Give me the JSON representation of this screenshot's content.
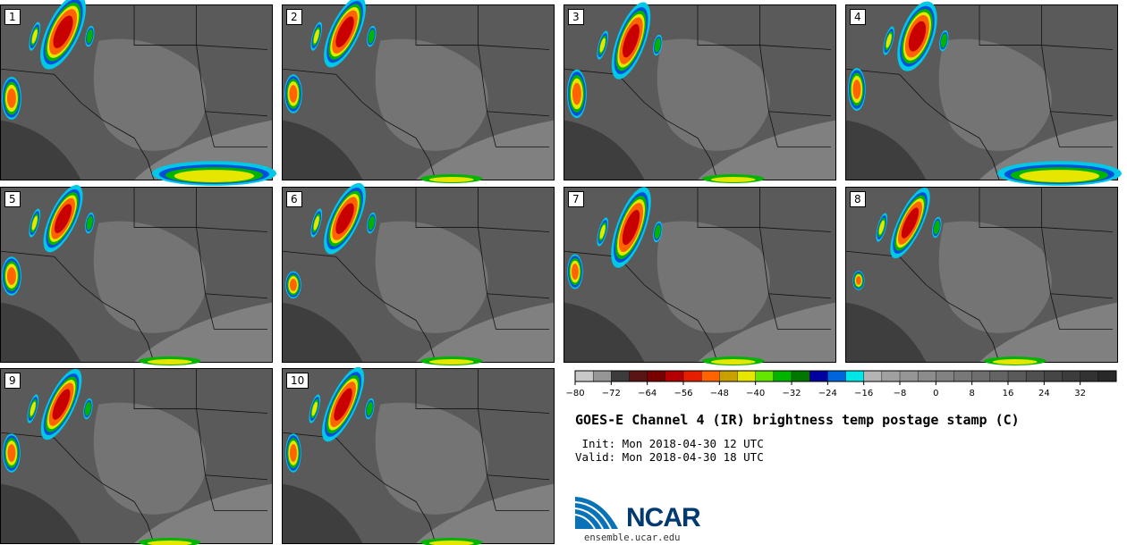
{
  "panels": [
    {
      "label": "1"
    },
    {
      "label": "2"
    },
    {
      "label": "3"
    },
    {
      "label": "4"
    },
    {
      "label": "5"
    },
    {
      "label": "6"
    },
    {
      "label": "7"
    },
    {
      "label": "8"
    },
    {
      "label": "9"
    },
    {
      "label": "10"
    }
  ],
  "colorbar": {
    "colors": [
      "#c8c8c8",
      "#969696",
      "#3c3c3c",
      "#5a1414",
      "#780000",
      "#b40000",
      "#e61e00",
      "#ff6400",
      "#c8a000",
      "#e6e600",
      "#64e600",
      "#00b400",
      "#007800",
      "#0000a0",
      "#0064dc",
      "#00e6e6",
      "#b4b4b4",
      "#a0a0a0",
      "#969696",
      "#8c8c8c",
      "#828282",
      "#787878",
      "#6e6e6e",
      "#646464",
      "#5a5a5a",
      "#505050",
      "#464646",
      "#3c3c3c",
      "#323232",
      "#282828"
    ],
    "ticks": [
      "−80",
      "−72",
      "−64",
      "−56",
      "−48",
      "−40",
      "−32",
      "−24",
      "−16",
      "−8",
      "0",
      "8",
      "16",
      "24",
      "32"
    ]
  },
  "title": "GOES-E Channel 4 (IR) brightness temp postage stamp (C)",
  "init": " Init: Mon 2018-04-30 12 UTC",
  "valid": "Valid: Mon 2018-04-30 18 UTC",
  "logo": {
    "text": "NCAR",
    "site": "ensemble.ucar.edu",
    "color": "#003a70"
  }
}
